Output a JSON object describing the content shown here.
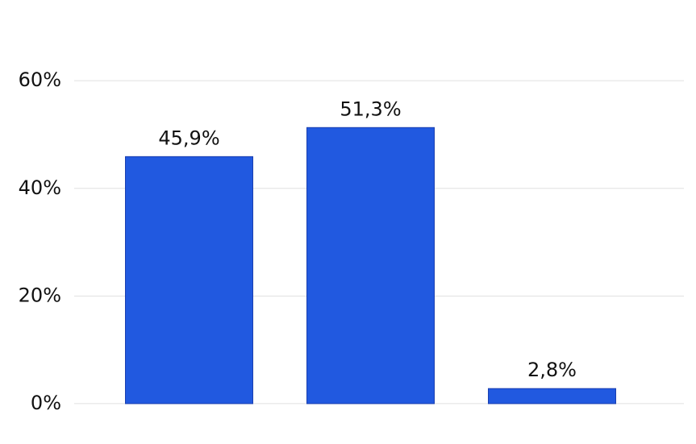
{
  "chart_data": {
    "type": "bar",
    "categories": [
      null,
      null,
      null
    ],
    "values": [
      45.9,
      51.3,
      2.8
    ],
    "value_labels": [
      "45,9%",
      "51,3%",
      "2,8%"
    ],
    "color": "#2159e0",
    "ylim": [
      -7.5,
      75
    ],
    "yticks": [
      {
        "value": 0,
        "label": "0%"
      },
      {
        "value": 20,
        "label": "20%"
      },
      {
        "value": 40,
        "label": "40%"
      },
      {
        "value": 60,
        "label": "60%"
      }
    ],
    "grid": true
  }
}
